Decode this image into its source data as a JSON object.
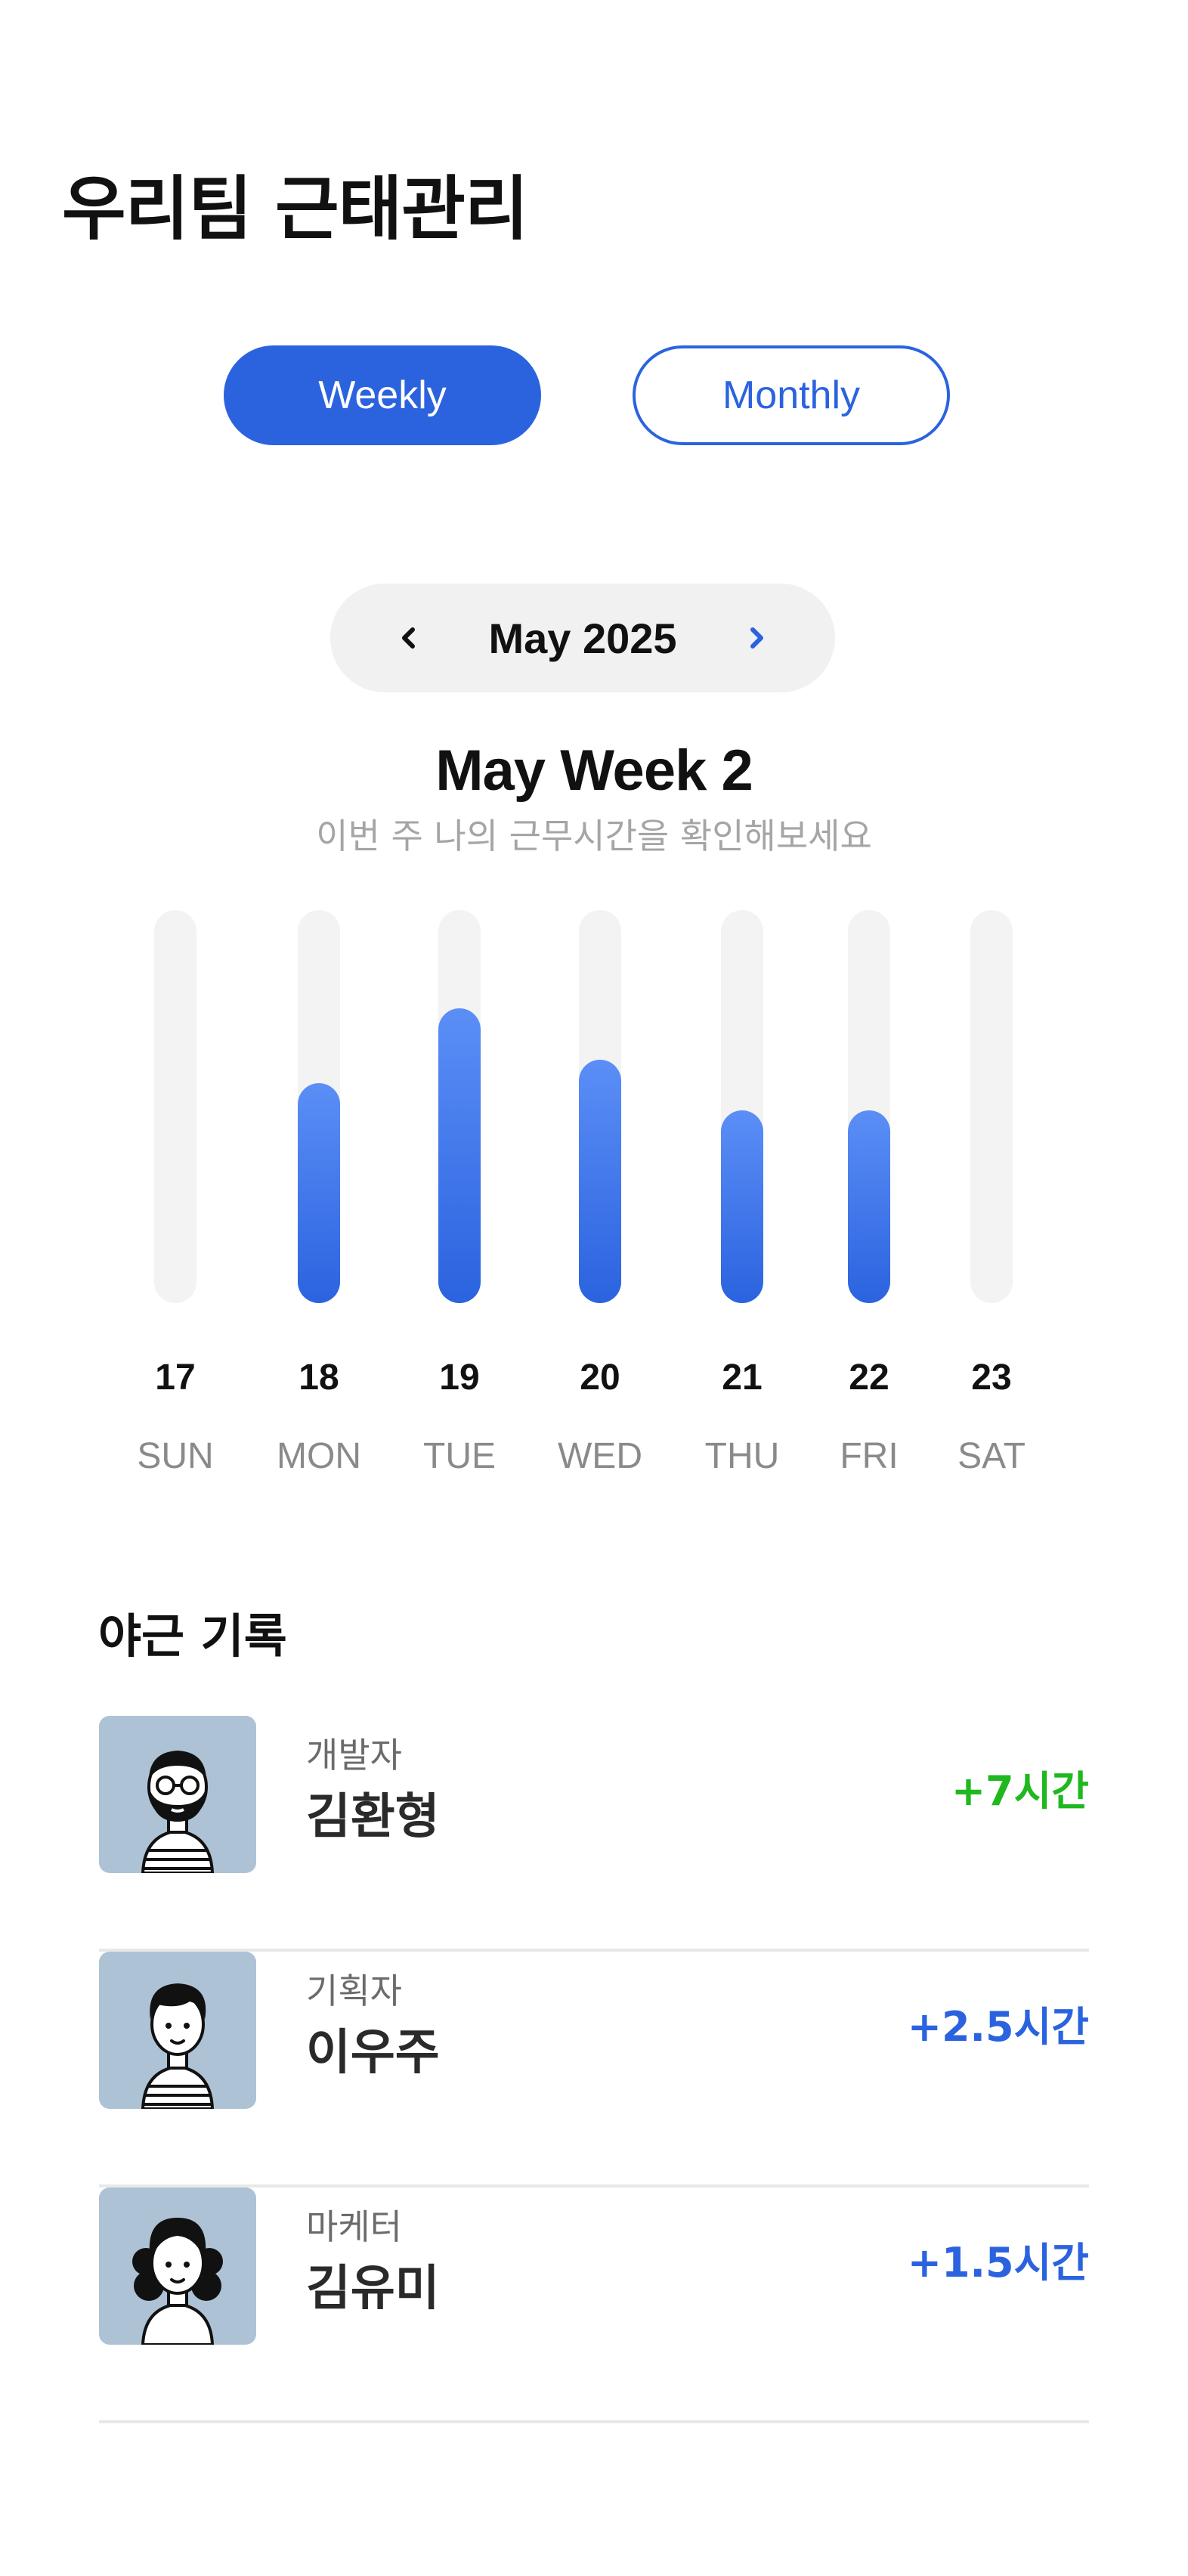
{
  "header": {
    "title": "우리팀 근태관리"
  },
  "period_toggle": {
    "weekly_label": "Weekly",
    "monthly_label": "Monthly",
    "selected": "Weekly"
  },
  "month_nav": {
    "label": "May 2025",
    "prev_icon": "chevron-left-icon",
    "next_icon": "chevron-right-icon"
  },
  "week": {
    "title": "May Week 2",
    "subtitle": "이번 주 나의 근무시간을 확인해보세요"
  },
  "colors": {
    "accent": "#2b63df",
    "accent_light": "#5b8ef6",
    "positive_green": "#1fb81f",
    "track": "#f3f3f3",
    "avatar_bg": "#aec2d6"
  },
  "chart_data": {
    "type": "bar",
    "categories": [
      "SUN",
      "MON",
      "TUE",
      "WED",
      "THU",
      "FRI",
      "SAT"
    ],
    "day_numbers": [
      "17",
      "18",
      "19",
      "20",
      "21",
      "22",
      "23"
    ],
    "values": [
      0,
      0.56,
      0.75,
      0.62,
      0.49,
      0.49,
      0
    ],
    "value_unit": "fraction of track",
    "ylim": [
      0,
      1
    ]
  },
  "overtime": {
    "title": "야근 기록",
    "members": [
      {
        "role": "개발자",
        "name": "김환형",
        "hours": "+7시간",
        "highlight": "green",
        "avatar_icon": "bearded-man-avatar-icon"
      },
      {
        "role": "기획자",
        "name": "이우주",
        "hours": "+2.5시간",
        "highlight": "blue",
        "avatar_icon": "short-hair-man-avatar-icon"
      },
      {
        "role": "마케터",
        "name": "김유미",
        "hours": "+1.5시간",
        "highlight": "blue",
        "avatar_icon": "curly-hair-woman-avatar-icon"
      }
    ]
  }
}
